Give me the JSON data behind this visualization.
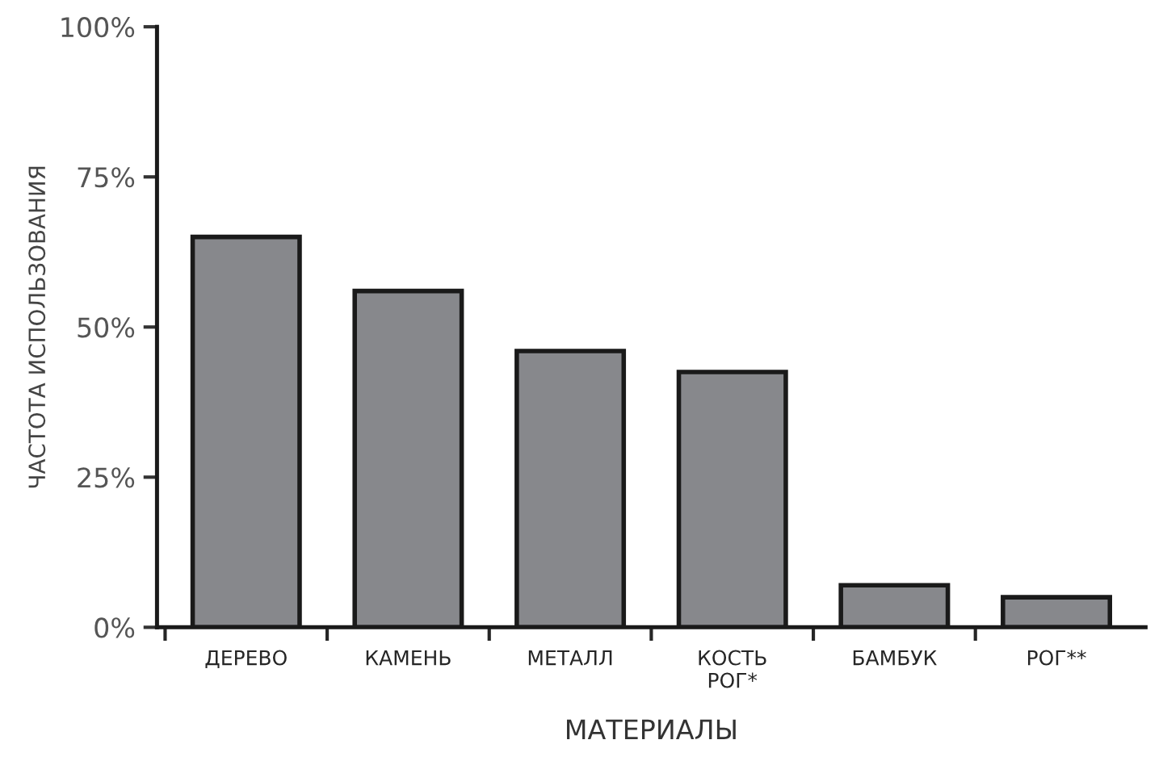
{
  "chart_data": {
    "type": "bar",
    "xlabel": "МАТЕРИАЛЫ",
    "ylabel": "ЧАСТОТА ИСПОЛЬЗОВАНИЯ",
    "categories": [
      "ДЕРЕВО",
      "КАМЕНЬ",
      "МЕТАЛЛ",
      "КОСТЬ\nРОГ*",
      "БАМБУК",
      "РОГ**"
    ],
    "values": [
      65,
      56,
      46,
      42.5,
      7,
      5
    ],
    "color": "#87888c",
    "ylim": [
      0,
      100
    ],
    "yticks": [
      {
        "value": 0,
        "label": "0%"
      },
      {
        "value": 25,
        "label": "25%"
      },
      {
        "value": 50,
        "label": "50%"
      },
      {
        "value": 75,
        "label": "75%"
      },
      {
        "value": 100,
        "label": "100%"
      }
    ],
    "grid": false,
    "legend": false
  }
}
